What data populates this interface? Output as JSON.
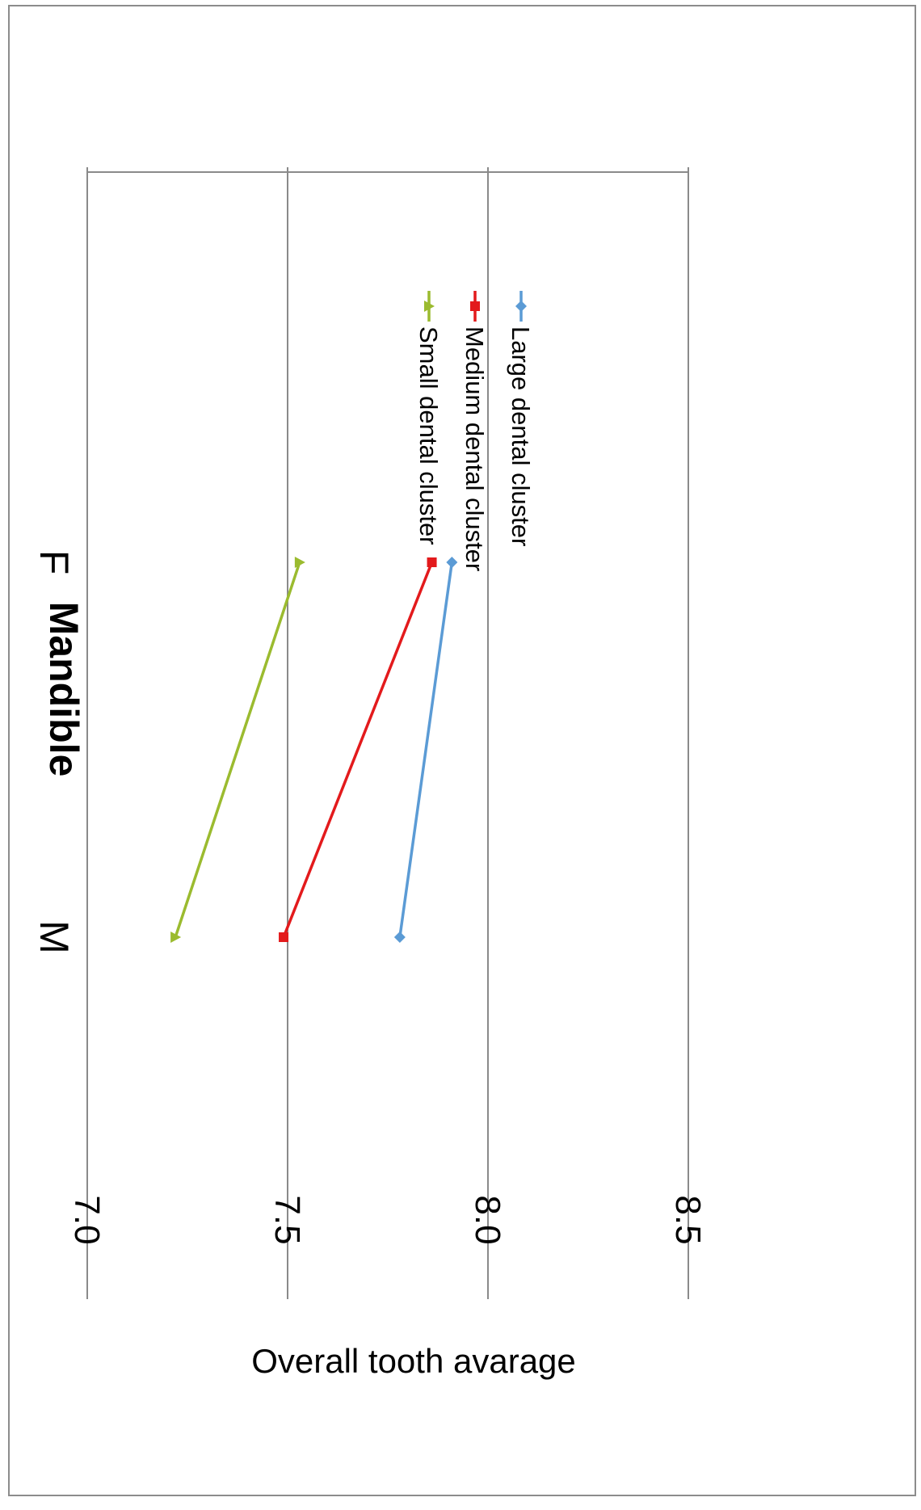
{
  "chart_data": {
    "type": "line",
    "title": "Mandible",
    "ylabel": "Overall tooth avarage",
    "xlabel": "",
    "categories": [
      "M",
      "F"
    ],
    "ylim": [
      7.0,
      8.5
    ],
    "yticks": [
      "7.0",
      "7.5",
      "8.0",
      "8.5"
    ],
    "grid": true,
    "legend_position": "right",
    "orientation": "rotated 90° clockwise",
    "series": [
      {
        "name": "Large dental cluster",
        "values": [
          7.78,
          7.91
        ],
        "color": "#5b9bd5",
        "marker": "diamond"
      },
      {
        "name": "Medium dental cluster",
        "values": [
          7.49,
          7.86
        ],
        "color": "#e31a1c",
        "marker": "square"
      },
      {
        "name": "Small dental cluster",
        "values": [
          7.22,
          7.53
        ],
        "color": "#9bbb2f",
        "marker": "triangle"
      }
    ]
  }
}
